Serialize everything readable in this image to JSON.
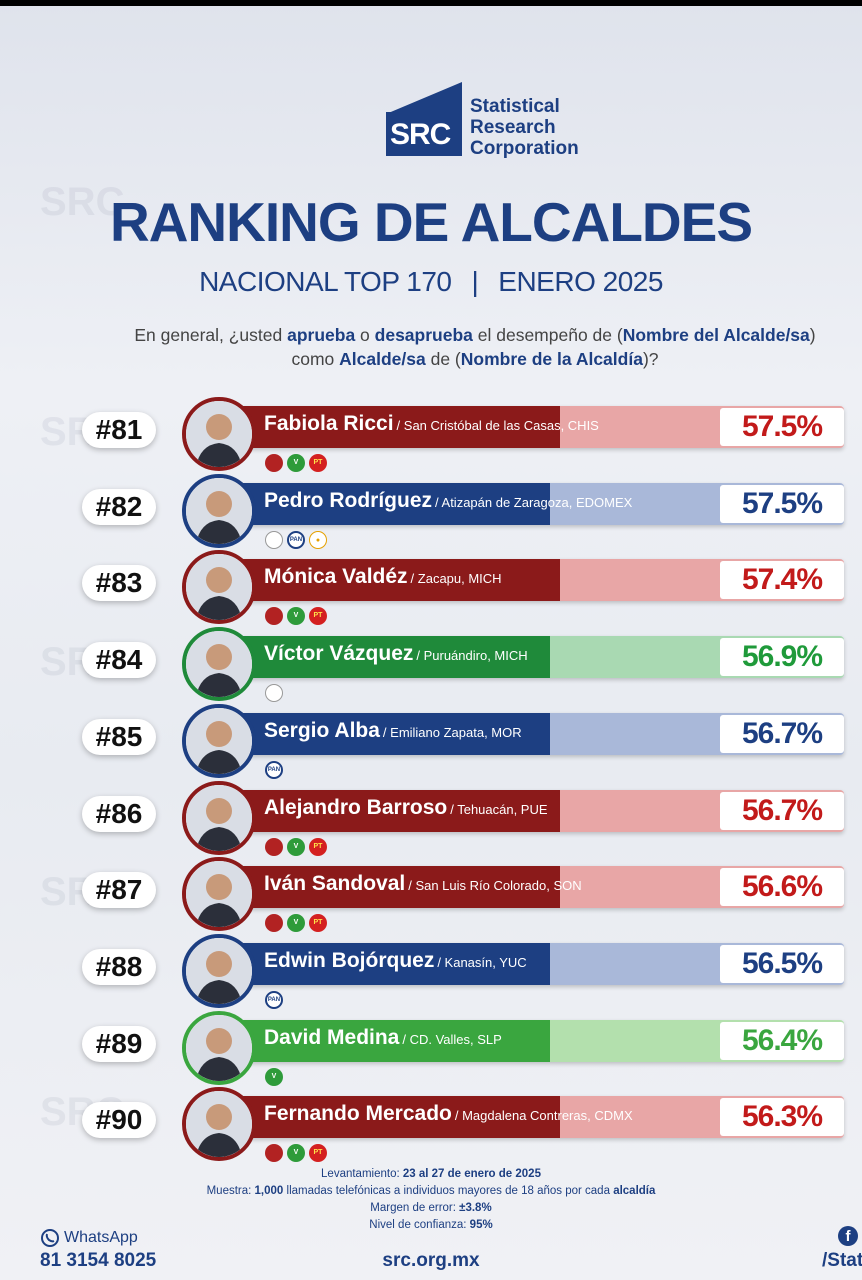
{
  "brand": {
    "abbr": "SRC",
    "line1": "Statistical",
    "line2": "Research",
    "line3": "Corporation"
  },
  "title": "RANKING DE ALCALDES",
  "subtitle": {
    "left": "NACIONAL TOP 170",
    "separator": "|",
    "right": "ENERO 2025"
  },
  "question": {
    "p1": "En general, ¿usted ",
    "b1": "aprueba",
    "p2": " o ",
    "b2": "desaprueba",
    "p3": " el desempeño de (",
    "b3": "Nombre del Alcalde/sa",
    "p4": ") como ",
    "b4": "Alcalde/sa",
    "p5": " de (",
    "b5": "Nombre de la Alcaldía",
    "p6": ")?"
  },
  "colors": {
    "morena": "#8b1a1a",
    "morena_light": "#e8a6a6",
    "pan": "#1d3f82",
    "pan_light": "#a9b8d9",
    "pri": "#1f8a3a",
    "pri_light": "#a9d9b2",
    "pvem": "#3aa63f",
    "pvem_light": "#b3e0ad"
  },
  "ranking": [
    {
      "rank": "#81",
      "name": "Fabiola Ricci",
      "location": "/ San Cristóbal de las Casas, CHIS",
      "pct": "57.5%",
      "value": 57.5,
      "color": "morena",
      "parties": [
        "MORENA",
        "VERDE",
        "PT"
      ]
    },
    {
      "rank": "#82",
      "name": "Pedro Rodríguez",
      "location": "/ Atizapán de Zaragoza, EDOMEX",
      "pct": "57.5%",
      "value": 57.5,
      "color": "pan",
      "parties": [
        "PRI",
        "PAN",
        "MC"
      ]
    },
    {
      "rank": "#83",
      "name": "Mónica Valdéz",
      "location": "/ Zacapu, MICH",
      "pct": "57.4%",
      "value": 57.4,
      "color": "morena",
      "parties": [
        "MORENA",
        "VERDE",
        "PT"
      ]
    },
    {
      "rank": "#84",
      "name": "Víctor Vázquez",
      "location": "/ Puruándiro, MICH",
      "pct": "56.9%",
      "value": 56.9,
      "color": "pri",
      "parties": [
        "PRI"
      ]
    },
    {
      "rank": "#85",
      "name": "Sergio Alba",
      "location": "/ Emiliano Zapata, MOR",
      "pct": "56.7%",
      "value": 56.7,
      "color": "pan",
      "parties": [
        "PAN"
      ]
    },
    {
      "rank": "#86",
      "name": "Alejandro Barroso",
      "location": "/ Tehuacán, PUE",
      "pct": "56.7%",
      "value": 56.7,
      "color": "morena",
      "parties": [
        "MORENA",
        "VERDE",
        "PT"
      ]
    },
    {
      "rank": "#87",
      "name": "Iván Sandoval",
      "location": "/ San Luis Río Colorado, SON",
      "pct": "56.6%",
      "value": 56.6,
      "color": "morena",
      "parties": [
        "MORENA",
        "VERDE",
        "PT"
      ]
    },
    {
      "rank": "#88",
      "name": "Edwin Bojórquez",
      "location": "/ Kanasín, YUC",
      "pct": "56.5%",
      "value": 56.5,
      "color": "pan",
      "parties": [
        "PAN"
      ]
    },
    {
      "rank": "#89",
      "name": "David Medina",
      "location": "/ CD. Valles, SLP",
      "pct": "56.4%",
      "value": 56.4,
      "color": "pvem",
      "parties": [
        "VERDE"
      ]
    },
    {
      "rank": "#90",
      "name": "Fernando Mercado",
      "location": "/ Magdalena Contreras, CDMX",
      "pct": "56.3%",
      "value": 56.3,
      "color": "morena",
      "parties": [
        "MORENA",
        "VERDE",
        "PT"
      ]
    }
  ],
  "footer": {
    "l1a": "Levantamiento: ",
    "l1b": "23 al 27 de enero de 2025",
    "l2a": "Muestra: ",
    "l2b": "1,000",
    "l2c": " llamadas telefónicas a individuos mayores de 18 años por cada ",
    "l2d": "alcaldía",
    "l3a": "Margen de error: ",
    "l3b": "±3.8%",
    "l4a": "Nivel de confianza: ",
    "l4b": "95%"
  },
  "contact": {
    "whatsapp_label": "WhatsApp",
    "whatsapp_number": "81 3154 8025",
    "website": "src.org.mx",
    "facebook": "/Stat"
  }
}
